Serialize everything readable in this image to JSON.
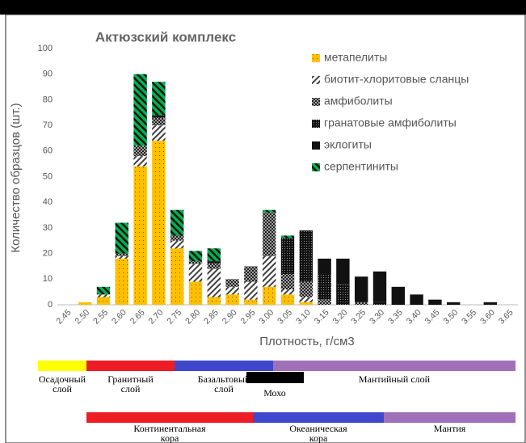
{
  "chart_data": {
    "type": "stacked_bar",
    "title": "Актюзский комплекс",
    "xlabel": "Плотность, г/см3",
    "ylabel": "Количество  образцов (шт.)",
    "categories": [
      "2.45",
      "2.50",
      "2.55",
      "2.60",
      "2.65",
      "2.70",
      "2.75",
      "2.80",
      "2.85",
      "2.90",
      "2.95",
      "3.00",
      "3.05",
      "3.10",
      "3.15",
      "3.20",
      "3.25",
      "3.30",
      "3.35",
      "3.40",
      "3.45",
      "3.50",
      "3.55",
      "3.60",
      "3.65"
    ],
    "series": [
      {
        "name": "метапелиты",
        "color": "#ffc000",
        "values": [
          0,
          1,
          3,
          18,
          54,
          64,
          22,
          9,
          3,
          4,
          2,
          7,
          4,
          1,
          0,
          0,
          0,
          0,
          0,
          0,
          0,
          0,
          0,
          0,
          0
        ]
      },
      {
        "name": "биотит-хлоритовые сланцы",
        "color": "#404040",
        "values": [
          0,
          0,
          1,
          1,
          4,
          6,
          3,
          7,
          11,
          3,
          7,
          12,
          2,
          2,
          0,
          0,
          0,
          0,
          0,
          0,
          0,
          0,
          0,
          0,
          0
        ]
      },
      {
        "name": "амфиболиты",
        "color": "#202020",
        "values": [
          0,
          0,
          0,
          1,
          4,
          3,
          2,
          1,
          2,
          3,
          6,
          17,
          6,
          6,
          2,
          0,
          1,
          0,
          0,
          0,
          0,
          0,
          0,
          0,
          0
        ]
      },
      {
        "name": "гранатовые амфиболиты",
        "color": "#111111",
        "values": [
          0,
          0,
          0,
          0,
          0,
          1,
          0,
          0,
          1,
          0,
          0,
          0,
          14,
          20,
          10,
          8,
          0,
          1,
          0,
          0,
          0,
          0,
          0,
          0,
          0
        ]
      },
      {
        "name": "эклогиты",
        "color": "#111111",
        "values": [
          0,
          0,
          0,
          0,
          0,
          0,
          0,
          0,
          0,
          0,
          0,
          0,
          0,
          0,
          6,
          10,
          10,
          12,
          7,
          4,
          2,
          1,
          0,
          1,
          0
        ]
      },
      {
        "name": "серпентиниты",
        "color": "#00b050",
        "values": [
          0,
          0,
          3,
          12,
          28,
          13,
          10,
          4,
          5,
          0,
          0,
          1,
          1,
          0,
          0,
          0,
          0,
          0,
          0,
          0,
          0,
          0,
          0,
          0,
          0
        ]
      }
    ],
    "ylim": [
      0,
      100
    ],
    "yticks": [
      0,
      10,
      20,
      30,
      40,
      50,
      60,
      70,
      80,
      90,
      100
    ],
    "grid": false,
    "legend": "upper right"
  },
  "layers": {
    "top": [
      {
        "label": [
          "Осадочный",
          "слой"
        ],
        "color": "#ffff00"
      },
      {
        "label": [
          "Гранитный",
          "слой"
        ],
        "color": "#ee1c25"
      },
      {
        "label": [
          "Базальтовый",
          "слой"
        ],
        "color": "#3f48cc"
      },
      {
        "label": [
          "Мантийный слой"
        ],
        "color": "#a070b8"
      }
    ],
    "moho": {
      "label": "Мохо",
      "color": "#000000"
    },
    "bottom": [
      {
        "label": [
          "Континентальная",
          "кора"
        ],
        "color": "#ee1c25"
      },
      {
        "label": [
          "Океаническая",
          "кора"
        ],
        "color": "#3f48cc"
      },
      {
        "label": [
          "Мантия"
        ],
        "color": "#a070b8"
      }
    ]
  }
}
